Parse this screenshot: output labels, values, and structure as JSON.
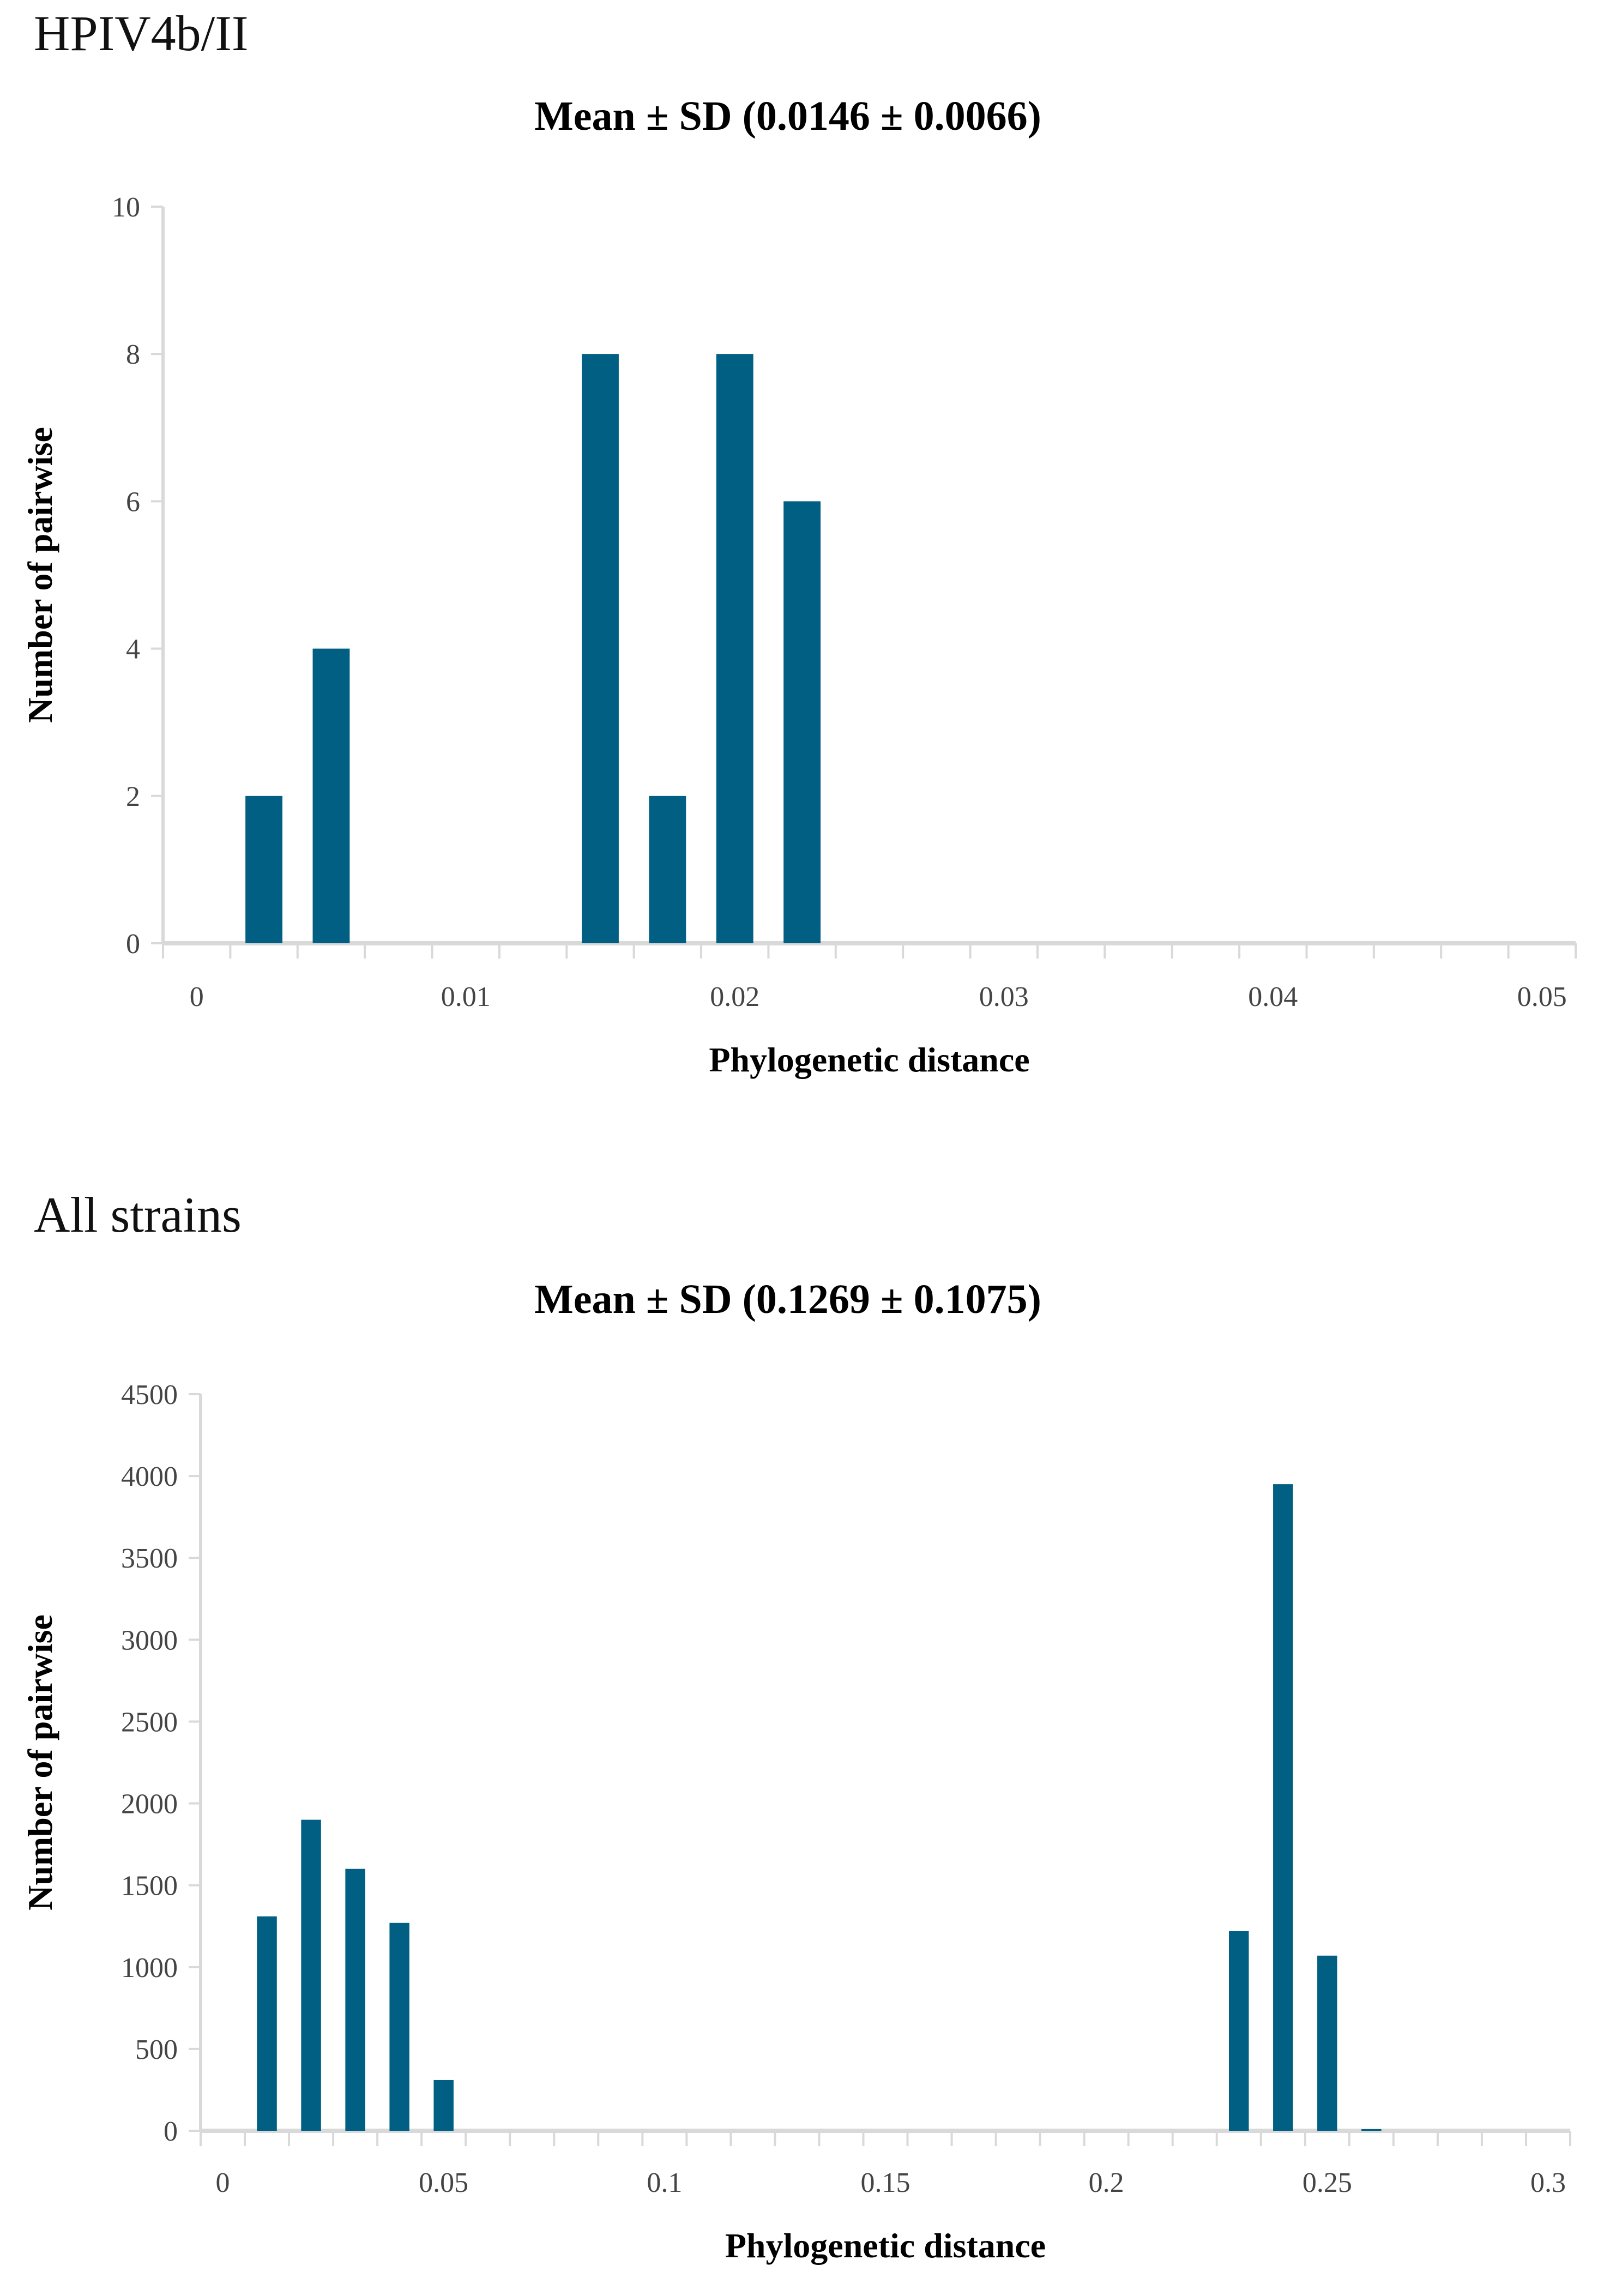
{
  "panels": [
    {
      "label": "HPIV4b/II",
      "title": "Mean ± SD (0.0146 ± 0.0066)",
      "xlabel": "Phylogenetic distance",
      "ylabel": "Number of pairwise"
    },
    {
      "label": "All strains",
      "title": "Mean ± SD (0.1269 ± 0.1075)",
      "xlabel": "Phylogenetic distance",
      "ylabel": "Number of pairwise"
    }
  ],
  "colors": {
    "bar": "#005f83",
    "axis": "#d9d9d9",
    "tick_label": "#444444"
  },
  "chart_data": [
    {
      "type": "bar",
      "panel_label": "HPIV4b/II",
      "title": "Mean ± SD (0.0146 ± 0.0066)",
      "xlabel": "Phylogenetic distance",
      "ylabel": "Number of pairwise",
      "categories": [
        0,
        0.0025,
        0.005,
        0.0075,
        0.01,
        0.0125,
        0.015,
        0.0175,
        0.02,
        0.0225,
        0.025,
        0.0275,
        0.03,
        0.0325,
        0.035,
        0.0375,
        0.04,
        0.0425,
        0.045,
        0.0475,
        0.05
      ],
      "values": [
        0,
        2,
        4,
        0,
        0,
        0,
        8,
        2,
        8,
        6,
        0,
        0,
        0,
        0,
        0,
        0,
        0,
        0,
        0,
        0,
        0
      ],
      "x_tick_labels": [
        "0",
        "0.01",
        "0.02",
        "0.03",
        "0.04",
        "0.05"
      ],
      "x_tick_label_every": 4,
      "y_ticks": [
        0,
        2,
        4,
        6,
        8,
        10
      ],
      "ylim": [
        0,
        10
      ],
      "grid": false,
      "legend": null
    },
    {
      "type": "bar",
      "panel_label": "All strains",
      "title": "Mean ± SD (0.1269 ± 0.1075)",
      "xlabel": "Phylogenetic distance",
      "ylabel": "Number of pairwise",
      "categories": [
        0,
        0.01,
        0.02,
        0.03,
        0.04,
        0.05,
        0.06,
        0.07,
        0.08,
        0.09,
        0.1,
        0.11,
        0.12,
        0.13,
        0.14,
        0.15,
        0.16,
        0.17,
        0.18,
        0.19,
        0.2,
        0.21,
        0.22,
        0.23,
        0.24,
        0.25,
        0.26,
        0.27,
        0.28,
        0.29,
        0.3
      ],
      "values": [
        0,
        1310,
        1900,
        1600,
        1270,
        310,
        0,
        0,
        0,
        0,
        0,
        0,
        0,
        0,
        0,
        0,
        0,
        0,
        0,
        0,
        0,
        0,
        0,
        1220,
        3950,
        1070,
        10,
        0,
        0,
        0,
        0
      ],
      "x_tick_labels": [
        "0",
        "0.05",
        "0.1",
        "0.15",
        "0.2",
        "0.25",
        "0.3"
      ],
      "x_tick_label_every": 5,
      "y_ticks": [
        0,
        500,
        1000,
        1500,
        2000,
        2500,
        3000,
        3500,
        4000,
        4500
      ],
      "ylim": [
        0,
        4500
      ],
      "grid": false,
      "legend": null
    }
  ]
}
